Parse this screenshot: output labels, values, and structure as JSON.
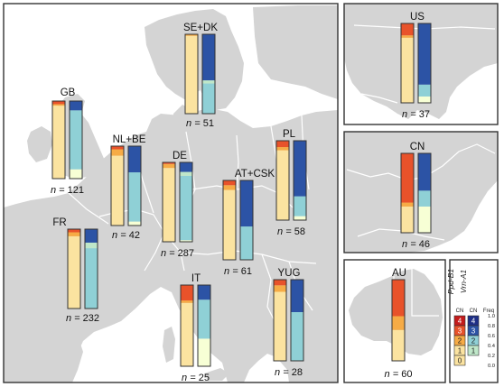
{
  "map": {
    "colors": {
      "land": "#d4d4d4",
      "sea": "#ffffff",
      "border": "#ffffff",
      "panel_frame": "#333333",
      "bar_outline": "#333333",
      "ppd_scale": [
        "#fbe3a0",
        "#f6ab45",
        "#e8522a",
        "#c41b1b"
      ],
      "vrn_scale": [
        "#f7ffd5",
        "#bfe7c9",
        "#8fd0d6",
        "#2c53a5",
        "#1f2f86"
      ]
    },
    "regions": [
      {
        "id": "gb",
        "label": "GB",
        "n": "121",
        "ppd": [
          0.935,
          0.02,
          0.04,
          0.0
        ],
        "vrn": [
          0.12,
          0.76,
          0.0,
          0.12
        ]
      },
      {
        "id": "nlbe",
        "label": "NL+BE",
        "n": "42",
        "ppd": [
          0.88,
          0.08,
          0.04,
          0.0
        ],
        "vrn": [
          0.05,
          0.62,
          0.0,
          0.33
        ]
      },
      {
        "id": "sedk",
        "label": "SE+DK",
        "n": "51",
        "ppd": [
          0.98,
          0.02,
          0.0,
          0.0
        ],
        "vrn": [
          0.0,
          0.38,
          0.04,
          0.58
        ]
      },
      {
        "id": "de",
        "label": "DE",
        "n": "287",
        "ppd": [
          0.93,
          0.05,
          0.02,
          0.0
        ],
        "vrn": [
          0.02,
          0.81,
          0.05,
          0.12
        ]
      },
      {
        "id": "fr",
        "label": "FR",
        "n": "232",
        "ppd": [
          0.91,
          0.05,
          0.04,
          0.0
        ],
        "vrn": [
          0.0,
          0.76,
          0.07,
          0.17
        ]
      },
      {
        "id": "atcsk",
        "label": "AT+CSK",
        "n": "61",
        "ppd": [
          0.88,
          0.06,
          0.06,
          0.0
        ],
        "vrn": [
          0.0,
          0.42,
          0.0,
          0.58
        ]
      },
      {
        "id": "pl",
        "label": "PL",
        "n": "58",
        "ppd": [
          0.88,
          0.04,
          0.08,
          0.0
        ],
        "vrn": [
          0.05,
          0.25,
          0.0,
          0.7
        ]
      },
      {
        "id": "it",
        "label": "IT",
        "n": "25",
        "ppd": [
          0.78,
          0.03,
          0.19,
          0.0
        ],
        "vrn": [
          0.34,
          0.48,
          0.0,
          0.18
        ]
      },
      {
        "id": "yug",
        "label": "YUG",
        "n": "28",
        "ppd": [
          0.85,
          0.08,
          0.07,
          0.0
        ],
        "vrn": [
          0.0,
          0.6,
          0.0,
          0.4
        ]
      },
      {
        "id": "us",
        "label": "US",
        "n": "37",
        "ppd": [
          0.82,
          0.03,
          0.15,
          0.0
        ],
        "vrn": [
          0.08,
          0.15,
          0.0,
          0.77
        ]
      },
      {
        "id": "cn",
        "label": "CN",
        "n": "46",
        "ppd": [
          0.33,
          0.05,
          0.62,
          0.0
        ],
        "vrn": [
          0.33,
          0.2,
          0.0,
          0.47
        ]
      },
      {
        "id": "au",
        "label": "AU",
        "n": "60",
        "ppd": [
          0.38,
          0.17,
          0.45,
          0.0
        ],
        "vrn": null
      }
    ],
    "legend": {
      "title_ppd": "Ppd-B1",
      "title_vrn": "Vrn-A1",
      "col_cn_left": "CN",
      "col_cn_right": "CN",
      "col_freq": "Freq",
      "ppd_numbers": [
        "4",
        "3",
        "2",
        "1",
        "0"
      ],
      "vrn_numbers": [
        "4",
        "3",
        "2",
        "1"
      ],
      "freq_ticks": [
        "1.0",
        "0.8",
        "0.6",
        "0.4",
        "0.2",
        "0.0"
      ]
    },
    "n_prefix": "n = "
  }
}
